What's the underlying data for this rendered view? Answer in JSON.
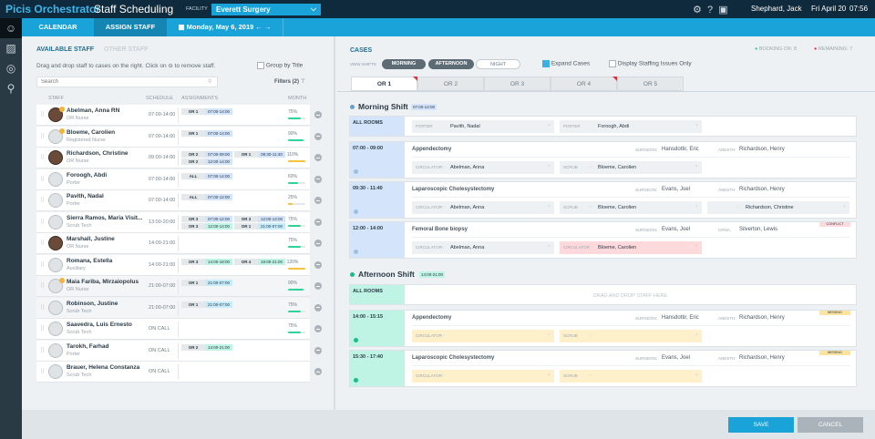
{
  "header": {
    "brand": "Picis Orchestrator",
    "app": "Staff Scheduling",
    "facility_label": "FACILITY",
    "facility": "Everett Surgery",
    "user": "Shephard, Jack",
    "date": "Fri April 20",
    "time": "07:56"
  },
  "nav": {
    "calendar": "CALENDAR",
    "assign": "ASSIGN STAFF",
    "date": "Monday, May 6, 2019"
  },
  "left": {
    "tab_available": "AVAILABLE STAFF",
    "tab_other": "OTHER STAFF",
    "hint": "Drag and drop staff to cases on the right. Click on ⊖ to remove staff.",
    "group_by": "Group by Title",
    "search_placeholder": "Search",
    "filters": "Filters (2)",
    "cols": {
      "staff": "STAFF",
      "schedule": "SCHEDULE",
      "assignments": "ASSIGNMENTS",
      "month": "MONTH"
    }
  },
  "staff": [
    {
      "name": "Abelman, Anna RN",
      "role": "OR Nurse",
      "schedule": "07:00-14:00",
      "photo": true,
      "badge": true,
      "month": "75%",
      "bar": 75,
      "bar_color": "#2ed39a",
      "assignments": [
        {
          "room": "OR 1",
          "time": "07:00-14:00",
          "color": "#d4e4fb"
        }
      ]
    },
    {
      "name": "Bloeme, Carolien",
      "role": "Registered Nurse",
      "schedule": "07:00-14:00",
      "photo": false,
      "badge": true,
      "month": "90%",
      "bar": 90,
      "bar_color": "#2ed39a",
      "assignments": [
        {
          "room": "OR 1",
          "time": "07:00-14:00",
          "color": "#d4e4fb"
        }
      ]
    },
    {
      "name": "Richardson, Christine",
      "role": "OR Nurse",
      "schedule": "09:00-14:00",
      "photo": true,
      "badge": false,
      "month": "110%",
      "bar": 100,
      "bar_color": "#f6c23a",
      "assignments": [
        {
          "room": "OR 2",
          "time": "07:00-09:00",
          "color": "#d4e4fb"
        },
        {
          "room": "OR 1",
          "time": "09:30-11:40",
          "color": "#d4e4fb"
        },
        {
          "room": "OR 2",
          "time": "12:00-14:00",
          "color": "#d4e4fb"
        }
      ]
    },
    {
      "name": "Foroogh, Abdi",
      "role": "Porter",
      "schedule": "07:00-14:00",
      "photo": false,
      "badge": false,
      "month": "60%",
      "bar": 60,
      "bar_color": "#2ed39a",
      "assignments": [
        {
          "room": "ALL",
          "time": "07:00-14:00",
          "color": "#d4e4fb"
        }
      ]
    },
    {
      "name": "Pavith, Nadal",
      "role": "Porter",
      "schedule": "07:00-14:00",
      "photo": false,
      "badge": false,
      "month": "25%",
      "bar": 25,
      "bar_color": "#f6c23a",
      "assignments": [
        {
          "room": "ALL",
          "time": "07:00-12:00",
          "color": "#d4e4fb"
        }
      ]
    },
    {
      "name": "Sierra Ramos, Maria Visit...",
      "role": "Scrub Tech",
      "schedule": "13:00-20:00",
      "photo": false,
      "badge": false,
      "month": "75%",
      "bar": 75,
      "bar_color": "#2ed39a",
      "assignments": [
        {
          "room": "OR 3",
          "time": "07:00-12:00",
          "color": "#d4e4fb"
        },
        {
          "room": "OR 3",
          "time": "12:00-14:00",
          "color": "#d4e4fb"
        },
        {
          "room": "OR 3",
          "time": "12:00-14:00",
          "color": "#bff3e3"
        },
        {
          "room": "OR 1",
          "time": "21:00-07:00",
          "color": "#c6ecfb"
        }
      ]
    },
    {
      "name": "Marshall, Justine",
      "role": "OR Nurse",
      "schedule": "14:00-21:00",
      "photo": true,
      "badge": false,
      "month": "75%",
      "bar": 75,
      "bar_color": "#2ed39a",
      "assignments": []
    },
    {
      "name": "Romana, Estella",
      "role": "Auxiliary",
      "schedule": "14:00-21:00",
      "photo": false,
      "badge": false,
      "month": "120%",
      "bar": 100,
      "bar_color": "#f6c23a",
      "assignments": [
        {
          "room": "OR 3",
          "time": "14:00-18:00",
          "color": "#bff3e3"
        },
        {
          "room": "OR 4",
          "time": "19:00-21:00",
          "color": "#bff3e3"
        }
      ]
    },
    {
      "name": "Maia Fariba, Mirzaiopolus",
      "role": "OR Nurse",
      "schedule": "21:00-07:00",
      "photo": false,
      "badge": true,
      "month": "90%",
      "bar": 90,
      "bar_color": "#2ed39a",
      "assignments": [
        {
          "room": "OR 1",
          "time": "21:00-07:00",
          "color": "#c6ecfb"
        }
      ]
    },
    {
      "name": "Robinson, Justine",
      "role": "Scrub Tech",
      "schedule": "21:00-07:00",
      "photo": false,
      "badge": false,
      "month": "75%",
      "bar": 75,
      "bar_color": "#2ed39a",
      "assignments": [
        {
          "room": "OR 1",
          "time": "21:00-07:00",
          "color": "#c6ecfb"
        }
      ]
    },
    {
      "name": "Saavedra, Luis Ernesto",
      "role": "Scrub Tech",
      "schedule": "ON CALL",
      "photo": false,
      "badge": false,
      "month": "75%",
      "bar": 75,
      "bar_color": "#2ed39a",
      "assignments": []
    },
    {
      "name": "Tarokh, Farhad",
      "role": "Porter",
      "schedule": "ON CALL",
      "photo": false,
      "badge": false,
      "month": "",
      "bar": null,
      "bar_color": "",
      "assignments": [
        {
          "room": "OR 2",
          "time": "14:00-21:00",
          "color": "#bff3e3"
        }
      ]
    },
    {
      "name": "Brauer, Helena Constanza",
      "role": "Scrub Tech",
      "schedule": "ON CALL",
      "photo": false,
      "badge": false,
      "month": "",
      "bar": null,
      "bar_color": "",
      "assignments": []
    }
  ],
  "cases": {
    "title": "CASES",
    "booking_ok": "BOOKING OK: 8",
    "remaining": "REMAINING: 7",
    "view_shifts": "VIEW SHIFTS",
    "shifts": [
      "MORNING",
      "AFTERNOON",
      "NIGHT"
    ],
    "expand": "Expand Cases",
    "issues_only": "Display Staffing Issues Only",
    "tabs": [
      "OR 1",
      "OR 2",
      "OR 3",
      "OR 4",
      "OR 5"
    ]
  },
  "shifts": [
    {
      "title": "Morning Shift",
      "time": "07:00-14:00",
      "color": "#d4e4fb",
      "all_rooms": "ALL ROOMS",
      "all_slots": [
        {
          "role": "PORTER",
          "name": "Pavith, Nadal"
        },
        {
          "role": "PORTER",
          "name": "Foroogh, Abdi"
        }
      ],
      "placeholder": "",
      "cases": [
        {
          "time": "07:00 - 09:00",
          "name": "Appendectomy",
          "surgeon": "Hansdottir, Eric",
          "anesth_label": "ANESTH:",
          "anesth": "Richardson, Henry",
          "badge": "",
          "slots": [
            {
              "role": "CIRCULATOR",
              "name": "Abelman, Anna",
              "state": ""
            },
            {
              "role": "SCRUB",
              "name": "Bloeme, Carolien",
              "state": ""
            }
          ]
        },
        {
          "time": "09:30 - 11:40",
          "name": "Laparoscopic Cholesystectomy",
          "surgeon": "Evans, Joel",
          "anesth_label": "ANESTH:",
          "anesth": "Richardson, Henry",
          "badge": "",
          "slots": [
            {
              "role": "CIRCULATOR",
              "name": "Abelman, Anna",
              "state": ""
            },
            {
              "role": "SCRUB",
              "name": "Bloeme, Carolien",
              "state": ""
            },
            {
              "role": "",
              "name": "Richardson, Christine",
              "state": ""
            }
          ]
        },
        {
          "time": "12:00 - 14:00",
          "name": "Femoral Bone biopsy",
          "surgeon": "Evans, Joel",
          "anesth_label": "CRNA:",
          "anesth": "Silverton, Lewis",
          "badge": "CONFLICT",
          "slots": [
            {
              "role": "CIRCULATOR",
              "name": "Abelman, Anna",
              "state": ""
            },
            {
              "role": "CIRCULATOR",
              "name": "Bloeme, Carolien",
              "state": "conflict"
            }
          ]
        }
      ]
    },
    {
      "title": "Afternoon Shift",
      "time": "14:00-21:00",
      "color": "#bff3e3",
      "all_rooms": "ALL ROOMS",
      "all_slots": [],
      "placeholder": "DRAG AND DROP STAFF HERE",
      "cases": [
        {
          "time": "14:00 - 15:15",
          "name": "Appendectomy",
          "surgeon": "Hansdottir, Eric",
          "anesth_label": "ANESTH:",
          "anesth": "Richardson, Henry",
          "badge": "MISSING",
          "slots": [
            {
              "role": "CIRCULATOR",
              "name": "",
              "state": "missing"
            },
            {
              "role": "SCRUB",
              "name": "",
              "state": "missing"
            }
          ]
        },
        {
          "time": "15:30 - 17:40",
          "name": "Laparoscopic Cholesystectomy",
          "surgeon": "Evans, Joel",
          "anesth_label": "ANESTH:",
          "anesth": "Richardson, Henry",
          "badge": "MISSING",
          "slots": [
            {
              "role": "CIRCULATOR",
              "name": "",
              "state": "missing"
            },
            {
              "role": "SCRUB",
              "name": "",
              "state": "missing"
            }
          ]
        }
      ]
    }
  ],
  "surgeon_label": "SURGEON:",
  "footer": {
    "save": "SAVE",
    "cancel": "CANCEL"
  },
  "colors": {
    "header": "#0f2a3c",
    "accent": "#1aa3d9",
    "ok": "#2ed39a",
    "warn": "#f6c23a",
    "conflict": "#ffd9dc",
    "missing": "#fff0cc"
  }
}
